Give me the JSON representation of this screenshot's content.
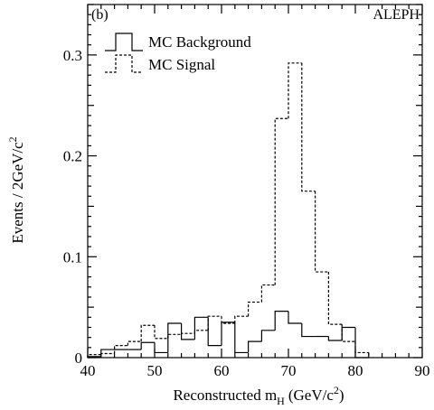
{
  "chart_data": {
    "type": "line",
    "panel_label": "(b)",
    "experiment": "ALEPH",
    "xlabel_main": "Reconstructed m",
    "xlabel_sub": "H",
    "xlabel_unit": "(GeV/c",
    "xlabel_unit_sup": "2",
    "xlabel_close": ")",
    "ylabel_main": "Events / 2GeV/c",
    "ylabel_sup": "2",
    "xlim": [
      40,
      90
    ],
    "ylim": [
      0,
      0.35
    ],
    "x_ticks": [
      40,
      50,
      60,
      70,
      80,
      90
    ],
    "x_tick_labels": [
      "40",
      "50",
      "60",
      "70",
      "80",
      "90"
    ],
    "y_ticks": [
      0,
      0.1,
      0.2,
      0.3
    ],
    "y_tick_labels": [
      "0",
      "0.1",
      "0.2",
      "0.3"
    ],
    "bin_edges": [
      40,
      42,
      44,
      46,
      48,
      50,
      52,
      54,
      56,
      58,
      60,
      62,
      64,
      66,
      68,
      70,
      72,
      74,
      76,
      78,
      80,
      82
    ],
    "series": [
      {
        "name": "MC Background",
        "style": "solid",
        "values": [
          0.001,
          0.008,
          0.008,
          0.008,
          0.015,
          0.005,
          0.034,
          0.018,
          0.04,
          0.012,
          0.035,
          0.005,
          0.016,
          0.027,
          0.046,
          0.034,
          0.021,
          0.021,
          0.017,
          0.03,
          0.0
        ]
      },
      {
        "name": "MC Signal",
        "style": "dashed",
        "values": [
          0.003,
          0.004,
          0.012,
          0.016,
          0.032,
          0.019,
          0.023,
          0.024,
          0.027,
          0.041,
          0.034,
          0.041,
          0.055,
          0.072,
          0.237,
          0.292,
          0.165,
          0.085,
          0.033,
          0.016,
          0.005
        ]
      }
    ],
    "legend_position": "top-left",
    "grid": false
  }
}
